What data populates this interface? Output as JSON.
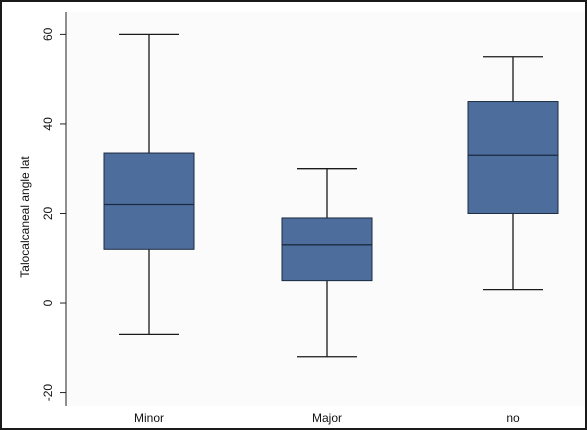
{
  "chart_data": {
    "type": "box",
    "title": "",
    "xlabel": "",
    "ylabel": "Talocalcaneal angle lat",
    "ylim": [
      -23,
      65
    ],
    "yticks": [
      -20,
      0,
      20,
      40,
      60
    ],
    "grid": false,
    "categories": [
      "Minor",
      "Major",
      "no"
    ],
    "boxes": [
      {
        "category": "Minor",
        "whisker_low": -7,
        "q1": 12,
        "median": 22,
        "q3": 33.5,
        "whisker_high": 60
      },
      {
        "category": "Major",
        "whisker_low": -12,
        "q1": 5,
        "median": 13,
        "q3": 19,
        "whisker_high": 30
      },
      {
        "category": "no",
        "whisker_low": 3,
        "q1": 20,
        "median": 33,
        "q3": 45,
        "whisker_high": 55
      }
    ],
    "colors": {
      "box_fill": "#4d6e9c",
      "box_stroke": "#1a2a40",
      "whisker": "#1a1a1a",
      "plot_bg": "#fbfbfb",
      "axis": "#222222"
    }
  }
}
